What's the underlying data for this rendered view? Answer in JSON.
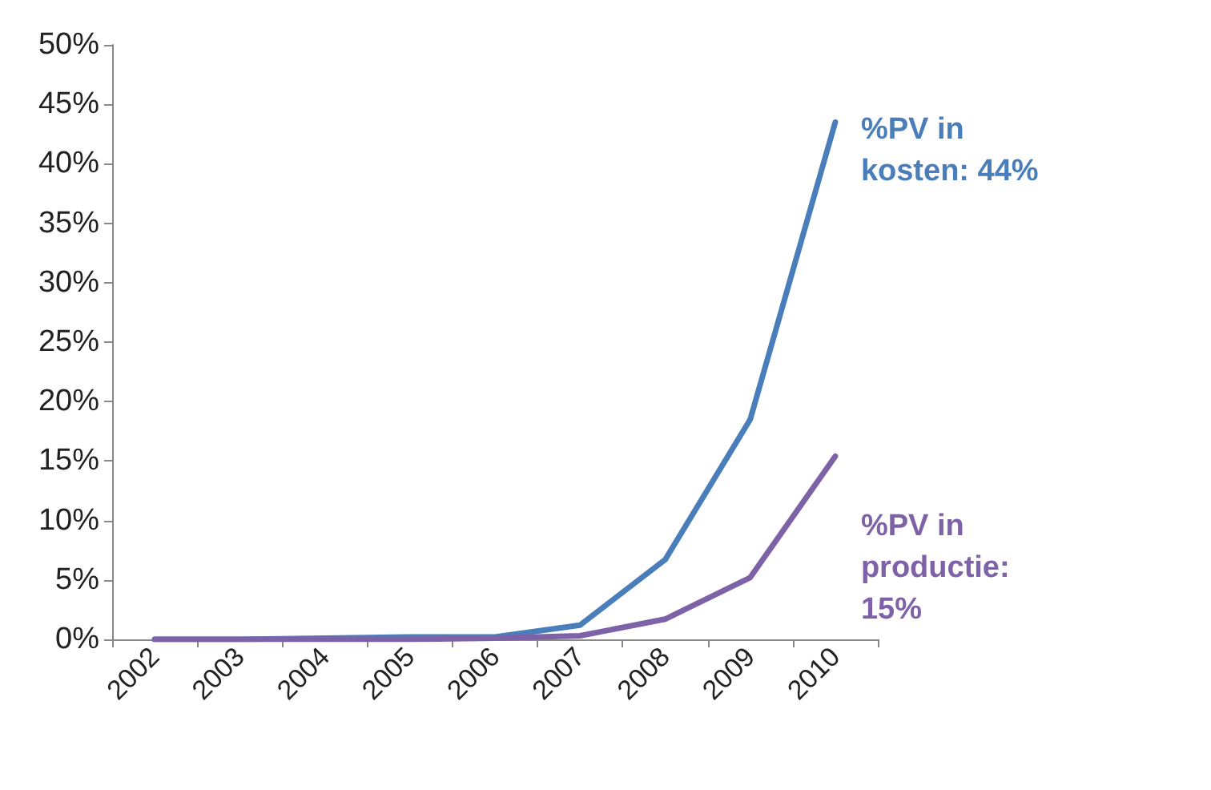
{
  "chart_data": {
    "type": "line",
    "categories": [
      "2002",
      "2003",
      "2004",
      "2005",
      "2006",
      "2007",
      "2008",
      "2009",
      "2010"
    ],
    "series": [
      {
        "name": "%PV in kosten: 44%",
        "color": "#4a7ebb",
        "values": [
          0,
          0,
          0.1,
          0.2,
          0.2,
          1.2,
          6.7,
          18.5,
          43.5
        ]
      },
      {
        "name": "%PV in productie: 15%",
        "color": "#7e62a8",
        "values": [
          0,
          0,
          0,
          0,
          0.1,
          0.3,
          1.7,
          5.2,
          15.4
        ]
      }
    ],
    "ylim": [
      0,
      50
    ],
    "yticks": [
      {
        "value": 0,
        "label": "0%"
      },
      {
        "value": 5,
        "label": "5%"
      },
      {
        "value": 10,
        "label": "10%"
      },
      {
        "value": 15,
        "label": "15%"
      },
      {
        "value": 20,
        "label": "20%"
      },
      {
        "value": 25,
        "label": "25%"
      },
      {
        "value": 30,
        "label": "30%"
      },
      {
        "value": 35,
        "label": "35%"
      },
      {
        "value": 40,
        "label": "40%"
      },
      {
        "value": 45,
        "label": "45%"
      },
      {
        "value": 50,
        "label": "50%"
      }
    ],
    "grid": false,
    "legend": false,
    "marker": "none",
    "line_style": "solid"
  }
}
